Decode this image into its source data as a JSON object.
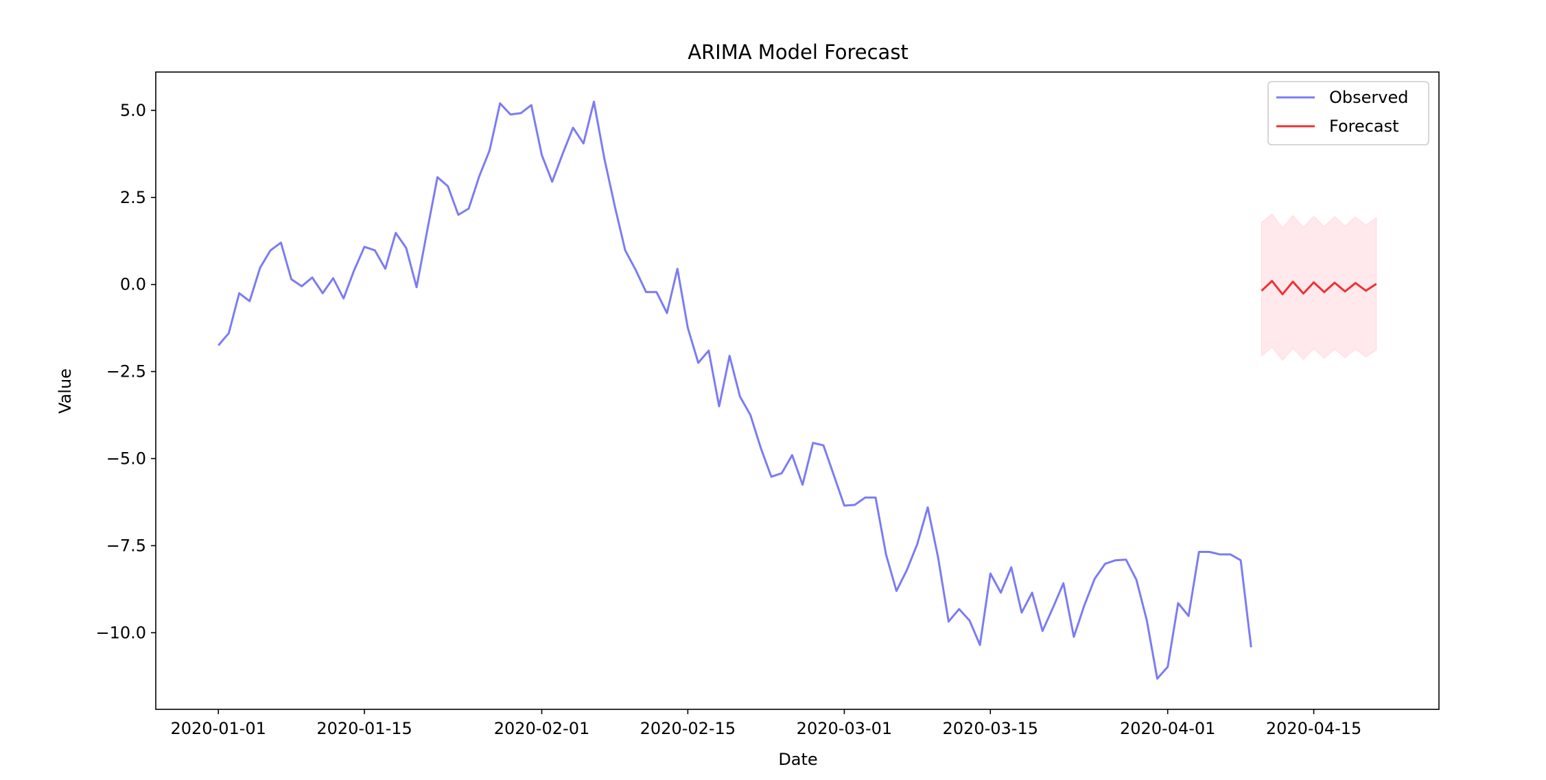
{
  "chart_data": {
    "type": "line",
    "title": "ARIMA Model Forecast",
    "xlabel": "Date",
    "ylabel": "Value",
    "x_ticks": [
      "2020-01-01",
      "2020-01-15",
      "2020-02-01",
      "2020-02-15",
      "2020-03-01",
      "2020-03-15",
      "2020-04-01",
      "2020-04-15"
    ],
    "y_ticks": [
      5.0,
      2.5,
      0.0,
      -2.5,
      -5.0,
      -7.5,
      -10.0
    ],
    "y_tick_labels": [
      "5.0",
      "2.5",
      "0.0",
      "−2.5",
      "−5.0",
      "−7.5",
      "−10.0"
    ],
    "xlim": [
      "2019-12-26",
      "2020-04-27"
    ],
    "ylim": [
      -12.2,
      6.1
    ],
    "grid": false,
    "legend_position": "top-right",
    "colors": {
      "observed": "#7b7bf5",
      "forecast": "#f03030",
      "confidence_band": "#ffc0cb"
    },
    "series": [
      {
        "name": "Observed",
        "start_date": "2020-01-01",
        "values": [
          -1.75,
          -1.4,
          -0.25,
          -0.48,
          0.48,
          0.98,
          1.2,
          0.15,
          -0.05,
          0.2,
          -0.25,
          0.18,
          -0.4,
          0.4,
          1.08,
          0.98,
          0.45,
          1.48,
          1.05,
          -0.08,
          1.52,
          3.08,
          2.82,
          2.0,
          2.18,
          3.1,
          3.85,
          5.2,
          4.88,
          4.92,
          5.15,
          3.72,
          2.95,
          3.75,
          4.5,
          4.05,
          5.25,
          3.62,
          2.25,
          0.98,
          0.42,
          -0.22,
          -0.22,
          -0.82,
          0.45,
          -1.25,
          -2.25,
          -1.9,
          -3.5,
          -2.05,
          -3.22,
          -3.75,
          -4.7,
          -5.52,
          -5.42,
          -4.9,
          -5.75,
          -4.55,
          -4.62,
          -5.48,
          -6.35,
          -6.33,
          -6.12,
          -6.12,
          -7.75,
          -8.8,
          -8.2,
          -7.45,
          -6.4,
          -7.85,
          -9.68,
          -9.32,
          -9.65,
          -10.35,
          -8.3,
          -8.85,
          -8.12,
          -9.42,
          -8.85,
          -9.95,
          -9.28,
          -8.58,
          -10.12,
          -9.22,
          -8.45,
          -8.02,
          -7.92,
          -7.9,
          -8.48,
          -9.65,
          -11.32,
          -10.98,
          -9.15,
          -9.52,
          -7.68,
          -7.68,
          -7.75,
          -7.75,
          -7.92,
          -10.42
        ]
      },
      {
        "name": "Forecast",
        "start_date": "2020-04-10",
        "values": [
          -0.18,
          0.1,
          -0.28,
          0.08,
          -0.26,
          0.06,
          -0.22,
          0.05,
          -0.2,
          0.04,
          -0.18,
          0.02
        ]
      }
    ],
    "confidence_band": {
      "start_date": "2020-04-10",
      "upper": [
        1.78,
        2.02,
        1.62,
        1.98,
        1.64,
        1.96,
        1.66,
        1.95,
        1.68,
        1.94,
        1.7,
        1.92
      ],
      "lower": [
        -2.05,
        -1.8,
        -2.18,
        -1.82,
        -2.16,
        -1.84,
        -2.12,
        -1.85,
        -2.1,
        -1.86,
        -2.08,
        -1.88
      ]
    }
  }
}
